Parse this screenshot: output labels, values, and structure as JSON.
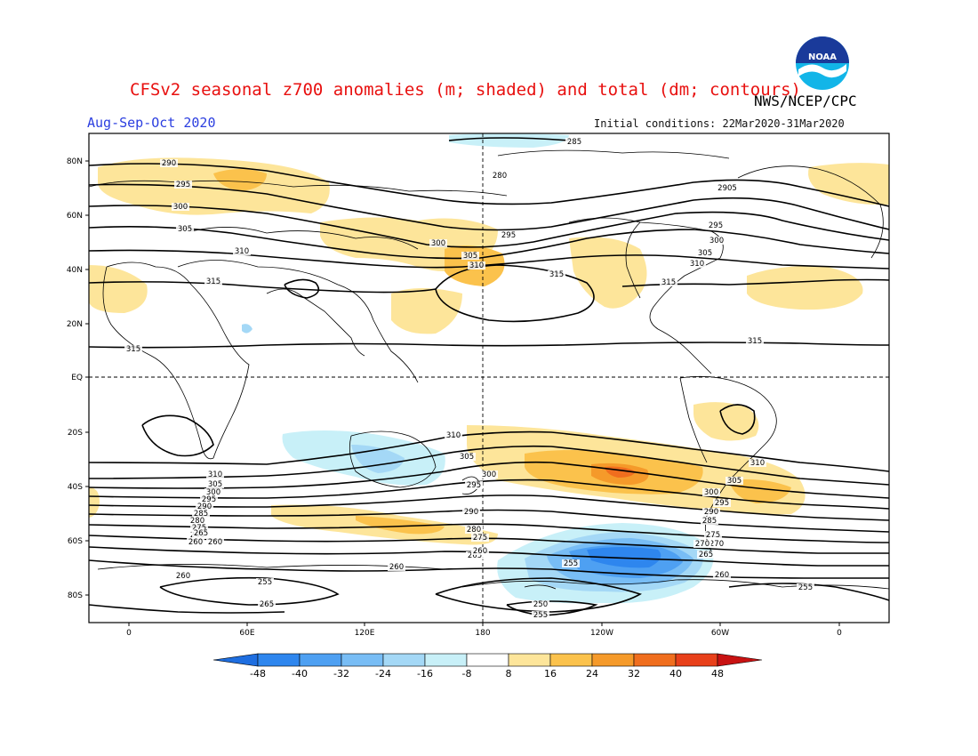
{
  "header": {
    "title": "CFSv2 seasonal z700 anomalies (m; shaded) and total (dm; contours)",
    "agency": "NWS/NCEP/CPC",
    "season": "Aug-Sep-Oct 2020",
    "init_conditions": "Initial conditions: 22Mar2020-31Mar2020",
    "logo_text": "NOAA"
  },
  "axes": {
    "lat_labels": [
      "80N",
      "60N",
      "40N",
      "20N",
      "EQ",
      "20S",
      "40S",
      "60S",
      "80S"
    ],
    "lon_labels": [
      "0",
      "60E",
      "120E",
      "180",
      "120W",
      "60W",
      "0"
    ]
  },
  "colorbar": {
    "ticks": [
      "-48",
      "-40",
      "-32",
      "-24",
      "-16",
      "-8",
      "8",
      "16",
      "24",
      "32",
      "40",
      "48"
    ],
    "colors": [
      "#1e6ee0",
      "#2e86ee",
      "#4ea0f2",
      "#78bdf5",
      "#a4d8f6",
      "#c8f0f8",
      "#ffffff",
      "#fde59a",
      "#fbc24c",
      "#f59a2a",
      "#f06e1e",
      "#e8401a",
      "#c81212"
    ]
  },
  "contour_labels": [
    {
      "t": "290"
    },
    {
      "t": "295"
    },
    {
      "t": "300"
    },
    {
      "t": "305"
    },
    {
      "t": "310"
    },
    {
      "t": "315"
    },
    {
      "t": "285"
    },
    {
      "t": "280"
    },
    {
      "t": "295"
    },
    {
      "t": "300"
    },
    {
      "t": "305"
    },
    {
      "t": "310"
    },
    {
      "t": "315"
    },
    {
      "t": "2905"
    },
    {
      "t": "295"
    },
    {
      "t": "300"
    },
    {
      "t": "305"
    },
    {
      "t": "310"
    },
    {
      "t": "315"
    },
    {
      "t": "315"
    },
    {
      "t": "315"
    },
    {
      "t": "310"
    },
    {
      "t": "305"
    },
    {
      "t": "300"
    },
    {
      "t": "295"
    },
    {
      "t": "290"
    },
    {
      "t": "280"
    },
    {
      "t": "275"
    },
    {
      "t": "265"
    },
    {
      "t": "260"
    },
    {
      "t": "255"
    },
    {
      "t": "250"
    },
    {
      "t": "255"
    },
    {
      "t": "260"
    },
    {
      "t": "265"
    },
    {
      "t": "270"
    },
    {
      "t": "260"
    },
    {
      "t": "255"
    },
    {
      "t": "260"
    },
    {
      "t": "265"
    },
    {
      "t": "310"
    },
    {
      "t": "305"
    },
    {
      "t": "300"
    },
    {
      "t": "295"
    },
    {
      "t": "290"
    },
    {
      "t": "285"
    },
    {
      "t": "275"
    },
    {
      "t": "270"
    },
    {
      "t": "265"
    },
    {
      "t": "260"
    },
    {
      "t": "255"
    },
    {
      "t": "310"
    },
    {
      "t": "305"
    },
    {
      "t": "300"
    },
    {
      "t": "295"
    },
    {
      "t": "290"
    },
    {
      "t": "285"
    },
    {
      "t": "280"
    },
    {
      "t": "275"
    },
    {
      "t": "265"
    },
    {
      "t": "260"
    }
  ]
}
